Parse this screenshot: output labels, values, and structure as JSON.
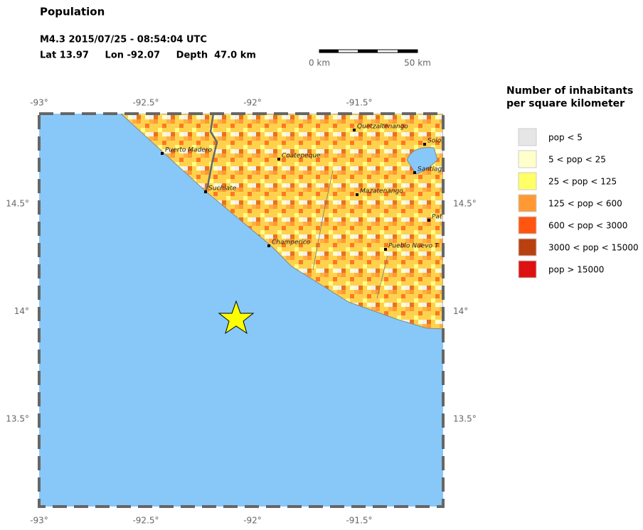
{
  "header": {
    "title": "Population",
    "event": "M4.3  2015/07/25 - 08:54:04 UTC",
    "location": "Lat 13.97     Lon -92.07     Depth  47.0 km"
  },
  "scale_bar": {
    "start": "0 km",
    "end": "50 km"
  },
  "map": {
    "lon_ticks": [
      "-93°",
      "-92.5°",
      "-92°",
      "-91.5°"
    ],
    "lat_ticks": [
      "14.5°",
      "14°",
      "13.5°"
    ],
    "cities": [
      "Quetzaltenango",
      "Solol",
      "Coatepeque",
      "Puerto Madero",
      "Suchiate",
      "Santiag",
      "Mazatenango",
      "Pat",
      "Champerico",
      "Pueblo Nuevo T"
    ]
  },
  "legend": {
    "title_lines": [
      "Number of inhabitants",
      "per square kilometer"
    ],
    "items": [
      {
        "label": "pop < 5",
        "color": "#e6e6e6"
      },
      {
        "label": "5 < pop < 25",
        "color": "#ffffcc"
      },
      {
        "label": "25 < pop < 125",
        "color": "#ffff66"
      },
      {
        "label": "125 < pop < 600",
        "color": "#ff9933"
      },
      {
        "label": "600 < pop < 3000",
        "color": "#ff5511"
      },
      {
        "label": "3000 < pop < 15000",
        "color": "#b8410f"
      },
      {
        "label": "pop > 15000",
        "color": "#dd1111"
      }
    ]
  }
}
